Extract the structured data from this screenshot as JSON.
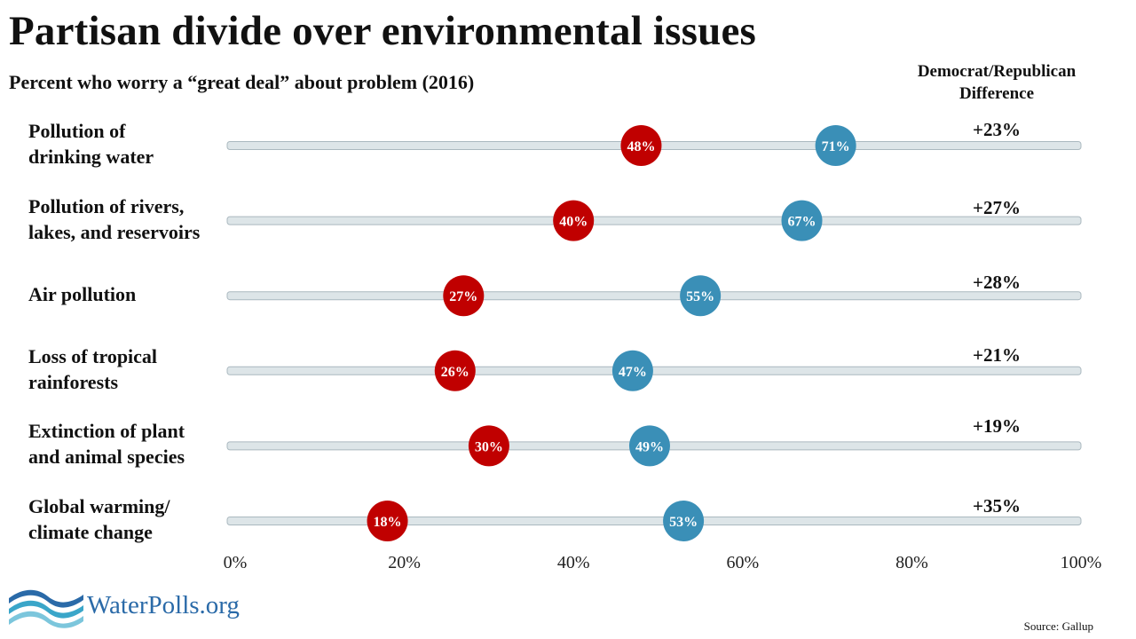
{
  "title": "Partisan divide over environmental issues",
  "subtitle": "Percent who worry a “great deal” about problem (2016)",
  "difference_header": [
    "Democrat/Republican",
    "Difference"
  ],
  "source": "Source: Gallup",
  "logo_text": "WaterPolls.org",
  "colors": {
    "republican": "#c00000",
    "democrat": "#3a8fb7",
    "track_fill": "#dde5e8",
    "track_stroke": "#aab8bf",
    "logo": "#2a6aa8"
  },
  "chart_data": {
    "type": "dot",
    "title": "Partisan divide over environmental issues",
    "subtitle": "Percent who worry a “great deal” about problem (2016)",
    "xlim": [
      0,
      100
    ],
    "x_ticks": [
      "0%",
      "20%",
      "40%",
      "60%",
      "80%",
      "100%"
    ],
    "categories": [
      [
        "Pollution of",
        "drinking water"
      ],
      [
        "Pollution of rivers,",
        "lakes, and reservoirs"
      ],
      [
        "Air pollution"
      ],
      [
        "Loss of tropical",
        "rainforests"
      ],
      [
        "Extinction of plant",
        "and animal species"
      ],
      [
        "Global warming/",
        "climate change"
      ]
    ],
    "series": [
      {
        "color": "#c00000",
        "values": [
          48,
          40,
          27,
          26,
          30,
          18
        ],
        "labels": [
          "48%",
          "40%",
          "27%",
          "26%",
          "30%",
          "18%"
        ]
      },
      {
        "color": "#3a8fb7",
        "values": [
          71,
          67,
          55,
          47,
          49,
          53
        ],
        "labels": [
          "71%",
          "67%",
          "55%",
          "47%",
          "49%",
          "53%"
        ]
      }
    ],
    "differences": [
      "+23%",
      "+27%",
      "+28%",
      "+21%",
      "+19%",
      "+35%"
    ]
  }
}
